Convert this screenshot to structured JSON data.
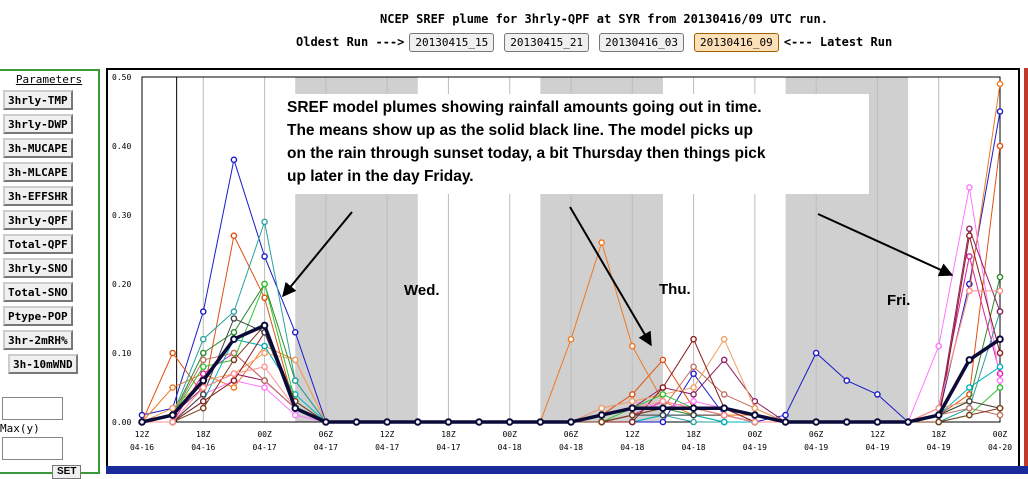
{
  "header": {
    "title": "NCEP SREF plume for 3hrly-QPF at SYR from 20130416/09 UTC run.",
    "oldest_label": "Oldest Run --->",
    "latest_label": "<--- Latest Run",
    "runs": [
      "20130415_15",
      "20130415_21",
      "20130416_03",
      "20130416_09"
    ]
  },
  "sidebar": {
    "title": "Parameters",
    "buttons": [
      "3hrly-TMP",
      "3hrly-DWP",
      "3h-MUCAPE",
      "3h-MLCAPE",
      "3h-EFFSHR",
      "3hrly-QPF",
      "Total-QPF",
      "3hrly-SNO",
      "Total-SNO",
      "Ptype-POP",
      "3hr-2mRH%",
      "3h-10mWND"
    ],
    "max_label": "Max(y)",
    "set_label": "SET"
  },
  "annotation": {
    "lines": [
      "SREF model plumes showing rainfall amounts going out in time.",
      "The means show up as the solid black line.  The model picks up",
      "on the rain through sunset today, a bit Thursday then things pick",
      "up later in the day Friday."
    ],
    "days": [
      "Wed.",
      "Thu.",
      "Fri."
    ]
  },
  "colors": {
    "mean": "#0b0b3a",
    "night": "#d0d0d0",
    "series": [
      "#1a1acc",
      "#e05010",
      "#f07820",
      "#2a8a2a",
      "#e020a0",
      "#ff77ff",
      "#2aa0a0",
      "#00b0c0",
      "#902060",
      "#c07060",
      "#f0a060",
      "#8b1a1a",
      "#30c030",
      "#404040",
      "#7b3b1b",
      "#ff9090"
    ]
  },
  "chart_data": {
    "type": "line",
    "ylim": [
      0,
      0.5
    ],
    "yticks": [
      "0.00",
      "0.10",
      "0.20",
      "0.30",
      "0.40",
      "0.50"
    ],
    "x_tick_hours": [
      "12Z",
      "18Z",
      "00Z",
      "06Z",
      "12Z",
      "18Z",
      "00Z",
      "06Z",
      "12Z",
      "18Z",
      "00Z",
      "06Z",
      "12Z",
      "18Z",
      "00Z"
    ],
    "x_tick_dates": [
      "04-16",
      "04-16",
      "04-17",
      "04-17",
      "04-17",
      "04-17",
      "04-18",
      "04-18",
      "04-18",
      "04-18",
      "04-19",
      "04-19",
      "04-19",
      "04-19",
      "04-20"
    ],
    "n_points": 29,
    "mean": [
      0,
      0.01,
      0.06,
      0.12,
      0.14,
      0.02,
      0,
      0,
      0,
      0,
      0,
      0,
      0,
      0,
      0,
      0.01,
      0.02,
      0.02,
      0.02,
      0.02,
      0.01,
      0,
      0,
      0,
      0,
      0,
      0.01,
      0.09,
      0.12
    ],
    "series": [
      {
        "values": [
          0.01,
          0.02,
          0.16,
          0.38,
          0.24,
          0.13,
          0,
          0,
          0,
          0,
          0,
          0,
          0,
          0,
          0,
          0,
          0,
          0,
          0.07,
          0.01,
          0,
          0.01,
          0.1,
          0.06,
          0.04,
          0,
          0.01,
          0.2,
          0.45
        ]
      },
      {
        "values": [
          0,
          0.1,
          0.04,
          0.27,
          0.18,
          0.02,
          0,
          0,
          0,
          0,
          0,
          0,
          0,
          0,
          0,
          0.01,
          0.04,
          0.09,
          0.02,
          0.01,
          0,
          0,
          0,
          0,
          0,
          0,
          0.01,
          0.04,
          0.4
        ]
      },
      {
        "values": [
          0,
          0.05,
          0.07,
          0.05,
          0.11,
          0.09,
          0,
          0,
          0,
          0,
          0,
          0,
          0,
          0,
          0.12,
          0.26,
          0.11,
          0.03,
          0.01,
          0.01,
          0.01,
          0,
          0,
          0,
          0,
          0,
          0.02,
          0.19,
          0.49
        ]
      },
      {
        "values": [
          0,
          0.01,
          0.1,
          0.13,
          0.2,
          0.06,
          0,
          0,
          0,
          0,
          0,
          0,
          0,
          0,
          0,
          0,
          0.01,
          0.02,
          0.01,
          0,
          0,
          0,
          0,
          0,
          0,
          0,
          0.01,
          0.03,
          0.21
        ]
      },
      {
        "values": [
          0,
          0,
          0.07,
          0.1,
          0.06,
          0.02,
          0,
          0,
          0,
          0,
          0,
          0,
          0,
          0,
          0,
          0,
          0.01,
          0.03,
          0.02,
          0.01,
          0,
          0,
          0,
          0,
          0,
          0,
          0.02,
          0.24,
          0.07
        ]
      },
      {
        "values": [
          0,
          0,
          0.04,
          0.06,
          0.05,
          0.01,
          0,
          0,
          0,
          0,
          0,
          0,
          0,
          0,
          0,
          0.02,
          0.03,
          0.02,
          0.03,
          0.02,
          0,
          0,
          0,
          0,
          0,
          0,
          0.11,
          0.34,
          0.06
        ]
      },
      {
        "values": [
          0,
          0.01,
          0.12,
          0.16,
          0.29,
          0.06,
          0,
          0,
          0,
          0,
          0,
          0,
          0,
          0,
          0,
          0,
          0,
          0.01,
          0,
          0,
          0,
          0,
          0,
          0,
          0,
          0,
          0,
          0.02,
          0.16
        ]
      },
      {
        "values": [
          0,
          0,
          0.03,
          0.12,
          0.11,
          0.04,
          0,
          0,
          0,
          0,
          0,
          0,
          0,
          0,
          0,
          0,
          0,
          0.01,
          0.01,
          0,
          0,
          0,
          0,
          0,
          0,
          0,
          0.01,
          0.05,
          0.08
        ]
      },
      {
        "values": [
          0,
          0.01,
          0.05,
          0.07,
          0.06,
          0.02,
          0,
          0,
          0,
          0,
          0,
          0,
          0,
          0,
          0,
          0.01,
          0.02,
          0.05,
          0.04,
          0.09,
          0.03,
          0,
          0,
          0,
          0,
          0,
          0.01,
          0.28,
          0.16
        ]
      },
      {
        "values": [
          0,
          0.01,
          0.09,
          0.1,
          0.06,
          0.02,
          0,
          0,
          0,
          0,
          0,
          0,
          0,
          0,
          0,
          0,
          0.01,
          0.02,
          0.08,
          0.04,
          0.02,
          0,
          0,
          0,
          0,
          0,
          0.01,
          0.02,
          0.01
        ]
      },
      {
        "values": [
          0,
          0.02,
          0.06,
          0.07,
          0.1,
          0.09,
          0,
          0,
          0,
          0,
          0,
          0,
          0,
          0,
          0,
          0.02,
          0.03,
          0.04,
          0.05,
          0.12,
          0.02,
          0,
          0,
          0,
          0,
          0,
          0.02,
          0.03,
          0.02
        ]
      },
      {
        "values": [
          0,
          0,
          0.03,
          0.06,
          0.13,
          0.02,
          0,
          0,
          0,
          0,
          0,
          0,
          0,
          0,
          0,
          0,
          0,
          0.05,
          0.12,
          0.02,
          0,
          0,
          0,
          0,
          0,
          0,
          0,
          0.27,
          0.1
        ]
      },
      {
        "values": [
          0,
          0.01,
          0.08,
          0.09,
          0.2,
          0.03,
          0,
          0,
          0,
          0,
          0,
          0,
          0,
          0,
          0,
          0,
          0.02,
          0.04,
          0.02,
          0.01,
          0,
          0,
          0,
          0,
          0,
          0,
          0,
          0.01,
          0.05
        ]
      },
      {
        "values": [
          0,
          0,
          0.04,
          0.15,
          0.13,
          0.02,
          0,
          0,
          0,
          0,
          0,
          0,
          0,
          0,
          0,
          0,
          0.01,
          0.01,
          0.01,
          0.01,
          0,
          0,
          0,
          0,
          0,
          0,
          0.01,
          0.03,
          0.02
        ]
      },
      {
        "values": [
          0,
          0,
          0.02,
          0.09,
          0.14,
          0.03,
          0,
          0,
          0,
          0,
          0,
          0,
          0,
          0,
          0,
          0,
          0.01,
          0.02,
          0.02,
          0.01,
          0,
          0,
          0,
          0,
          0,
          0,
          0,
          0.01,
          0.02
        ]
      },
      {
        "values": [
          0,
          0,
          0.05,
          0.07,
          0.08,
          0.02,
          0,
          0,
          0,
          0,
          0,
          0,
          0,
          0,
          0,
          0.01,
          0.02,
          0.03,
          0.02,
          0.01,
          0,
          0,
          0,
          0,
          0,
          0,
          0.02,
          0.19,
          0.19
        ]
      }
    ],
    "night_bands": [
      [
        5,
        9
      ],
      [
        13,
        17
      ],
      [
        21,
        25
      ]
    ]
  }
}
